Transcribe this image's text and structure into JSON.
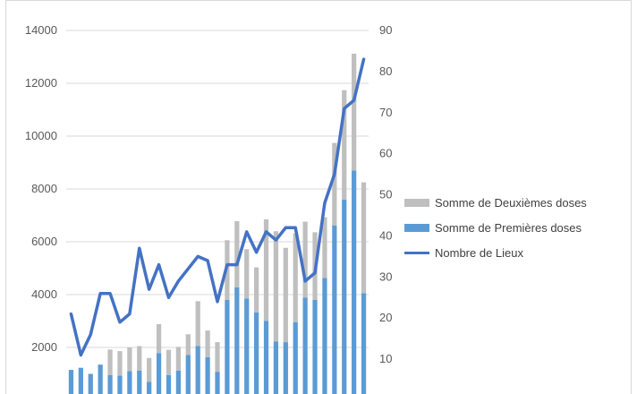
{
  "chart_data": {
    "type": "bar",
    "bar_mode": "stacked",
    "y_left": {
      "ticks": [
        2000,
        4000,
        6000,
        8000,
        10000,
        12000,
        14000
      ],
      "range": [
        0,
        14000
      ]
    },
    "y_right": {
      "ticks": [
        10,
        20,
        30,
        40,
        50,
        60,
        70,
        80,
        90
      ],
      "range": [
        0,
        90
      ]
    },
    "grid": true,
    "legend_position": "right",
    "series": [
      {
        "name": "Somme de Premières doses",
        "kind": "bar",
        "axis": "left",
        "color": "#5b9bd5",
        "values": [
          1150,
          1230,
          1000,
          1350,
          950,
          930,
          1100,
          1120,
          700,
          1780,
          950,
          1120,
          1720,
          2060,
          1630,
          1080,
          3800,
          4280,
          3850,
          3330,
          3000,
          2230,
          2200,
          2960,
          3890,
          3800,
          4630,
          6620,
          7600,
          8700,
          4050
        ]
      },
      {
        "name": "Somme de Deuxièmes doses",
        "kind": "bar",
        "axis": "left",
        "color": "#bfbfbf",
        "values": [
          0,
          0,
          0,
          0,
          970,
          930,
          900,
          930,
          900,
          1100,
          960,
          900,
          780,
          1690,
          1010,
          1120,
          2260,
          2500,
          1870,
          1700,
          3850,
          4170,
          3570,
          3360,
          2870,
          2560,
          2300,
          3120,
          4140,
          4420,
          4200
        ]
      },
      {
        "name": "Nombre de Lieux",
        "kind": "line",
        "axis": "right",
        "color": "#4472c4",
        "values": [
          21,
          11,
          16,
          26,
          26,
          19,
          21,
          37,
          27,
          33,
          25,
          29,
          32,
          35,
          34,
          24,
          33,
          33,
          41,
          36,
          41,
          39,
          42,
          42,
          29,
          31,
          48,
          55,
          71,
          73,
          83
        ]
      }
    ]
  }
}
